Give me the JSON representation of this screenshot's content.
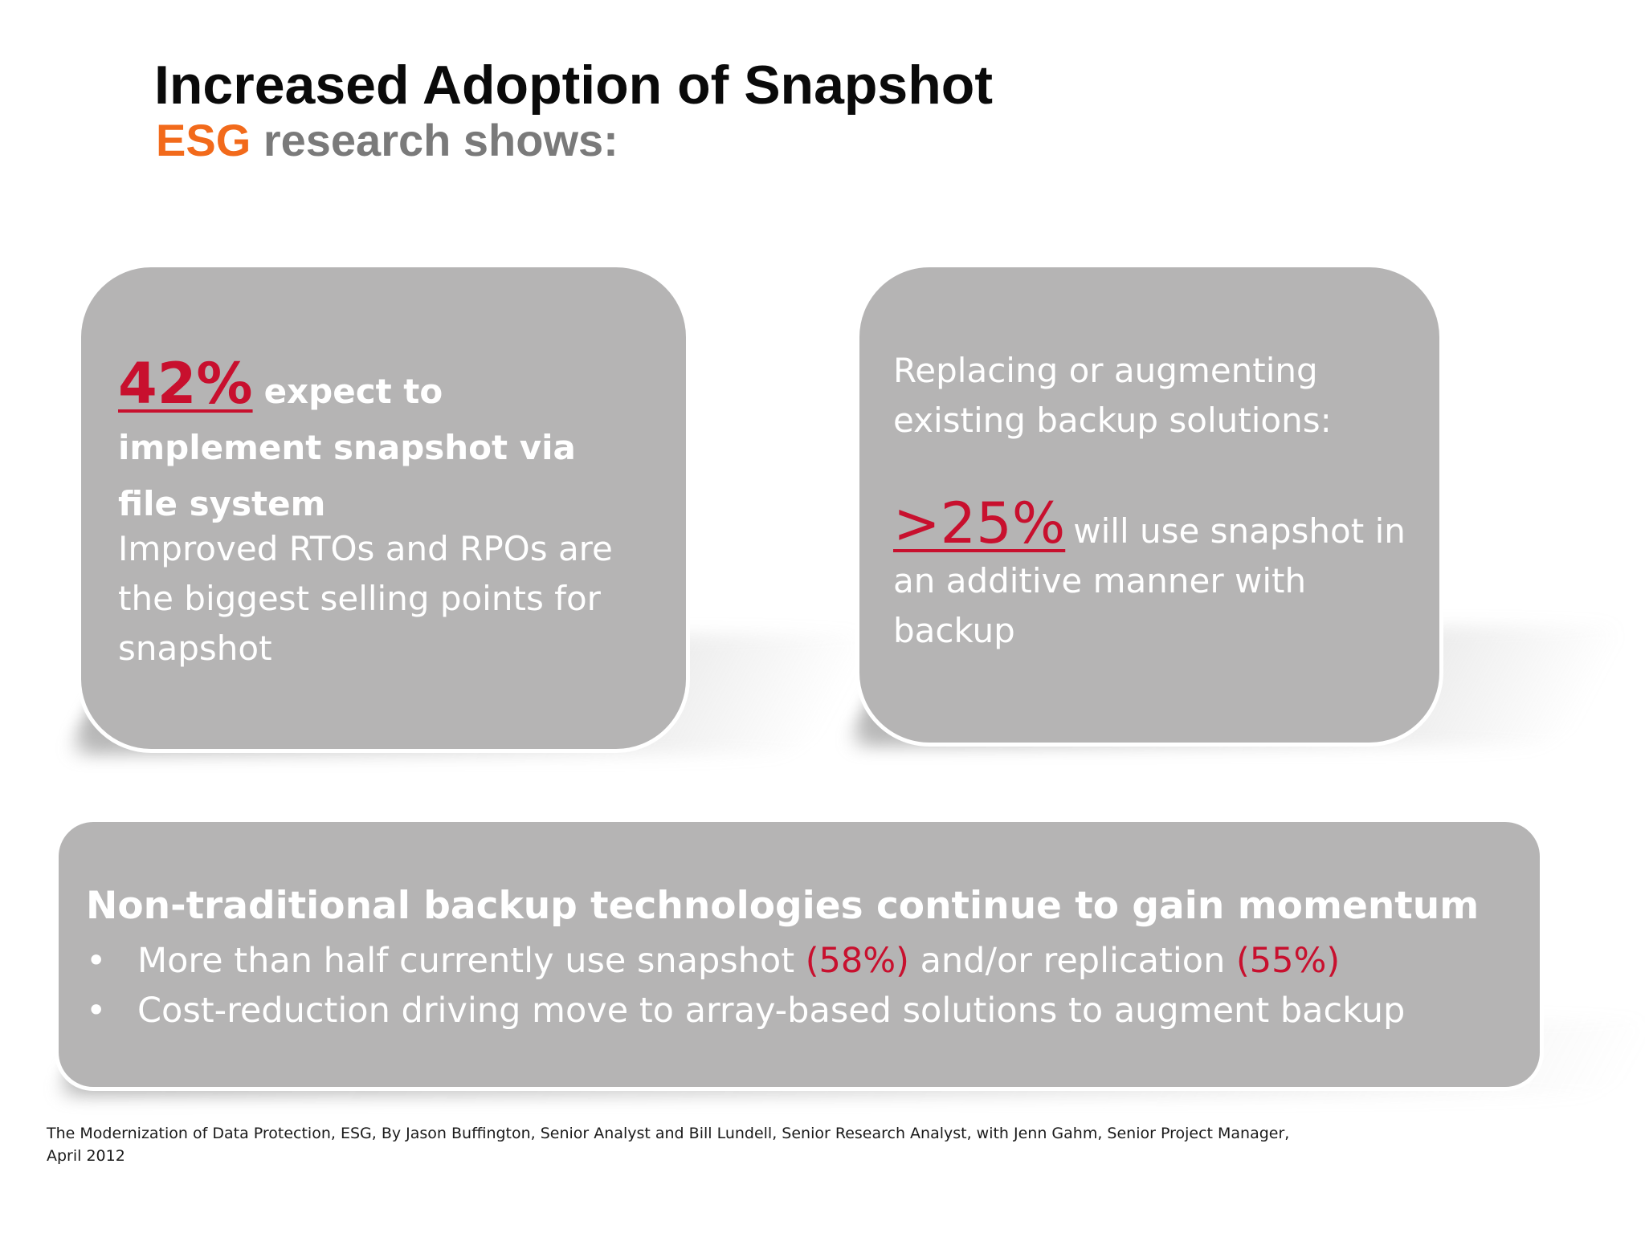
{
  "header": {
    "title": "Increased Adoption of Snapshot",
    "subtitle_brand": "ESG",
    "subtitle_rest": " research shows:"
  },
  "card1": {
    "stat_pct": "42%",
    "stat_text": "expect to implement snapshot via file system",
    "body": "Improved RTOs and RPOs are the biggest selling points for snapshot"
  },
  "card2": {
    "intro": "Replacing or augmenting existing backup solutions:",
    "stat_pct": ">25%",
    "stat_text": "will use snapshot in an additive manner with backup"
  },
  "card3": {
    "heading": "Non-traditional backup technologies continue to gain momentum",
    "bullet_symbol": "•",
    "bullet1": {
      "part1": "More than half currently use snapshot ",
      "pct1": "(58%)",
      "part2": " and/or replication ",
      "pct2": "(55%)"
    },
    "bullet2": "Cost-reduction driving move to array-based solutions to augment backup"
  },
  "citation": {
    "line1": "The Modernization of Data Protection, ESG, By Jason Buffington, Senior Analyst and Bill Lundell, Senior Research Analyst, with Jenn Gahm, Senior Project Manager,",
    "line2": "April 2012"
  },
  "colors": {
    "card_fill": "#b5b4b4",
    "highlight_red": "#c8102e",
    "brand_orange": "#f26a1b",
    "subtitle_gray": "#7a7a7a"
  }
}
